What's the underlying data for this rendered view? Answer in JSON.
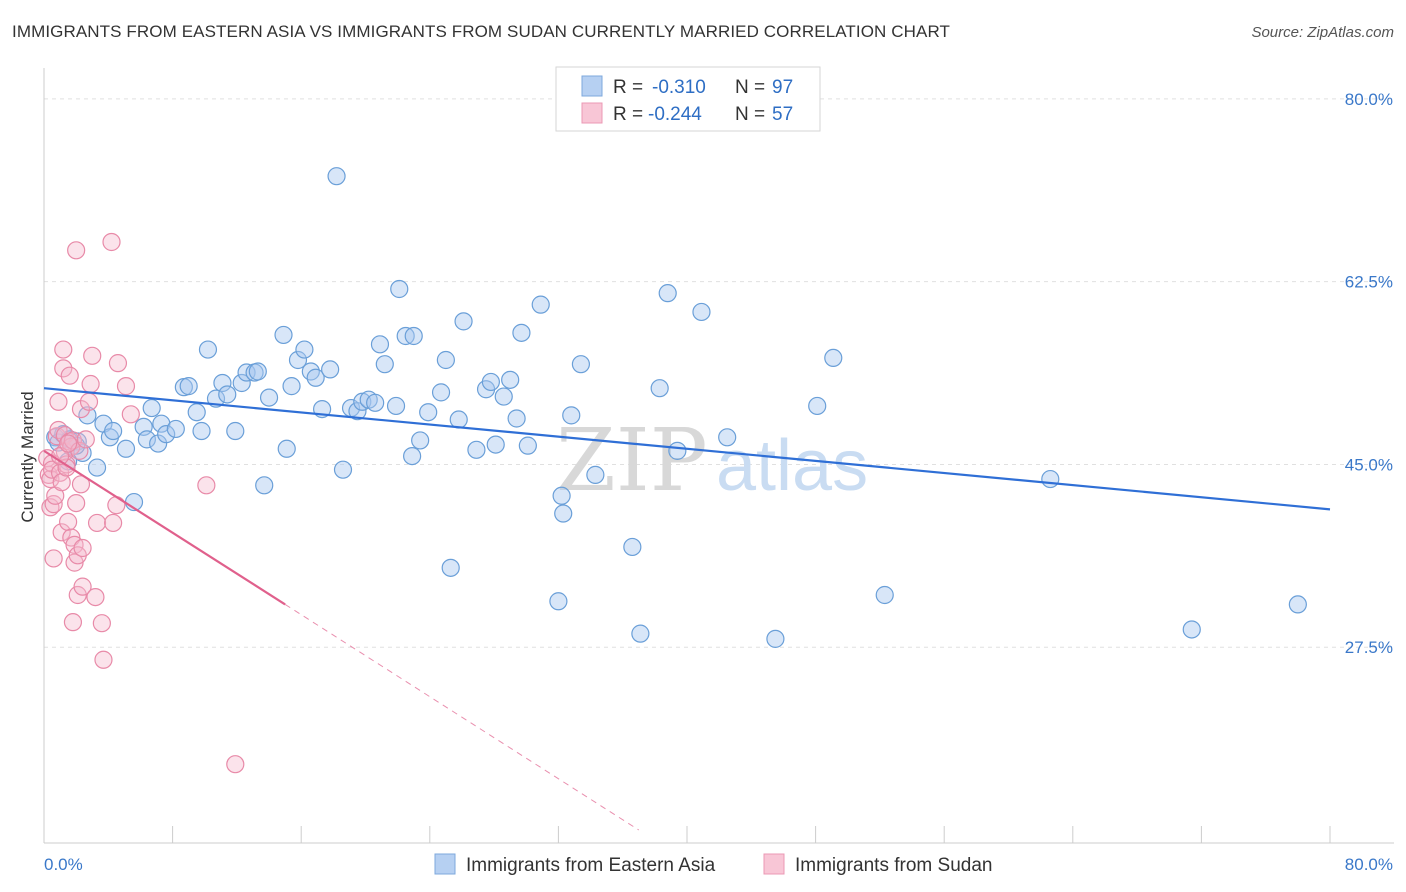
{
  "title": "IMMIGRANTS FROM EASTERN ASIA VS IMMIGRANTS FROM SUDAN CURRENTLY MARRIED CORRELATION CHART",
  "source": "Source: ZipAtlas.com",
  "watermark": {
    "zip": "ZIP",
    "atlas": "atlas"
  },
  "colors": {
    "blue_fill": "#a8c8f0",
    "blue_stroke": "#6a9fd8",
    "blue_line": "#2f6fd6",
    "pink_fill": "#f5b8cc",
    "pink_stroke": "#e88aa8",
    "pink_line": "#e0608c",
    "tick_label": "#3a78c9",
    "grid": "#e0e0e0"
  },
  "legend": {
    "rows": [
      {
        "r_label": "R = ",
        "r_value": "-0.310",
        "n_label": "N = ",
        "n_value": "97"
      },
      {
        "r_label": "R = ",
        "r_value": "-0.244",
        "n_label": "N = ",
        "n_value": "57"
      }
    ]
  },
  "chart_data": {
    "type": "scatter",
    "title": "IMMIGRANTS FROM EASTERN ASIA VS IMMIGRANTS FROM SUDAN CURRENTLY MARRIED CORRELATION CHART",
    "xlabel": "",
    "ylabel": "Currently Married",
    "xlim": [
      0,
      80
    ],
    "ylim": [
      10,
      82
    ],
    "x_tick_labels": [
      "0.0%",
      "80.0%"
    ],
    "y_ticks": [
      27.5,
      45.0,
      62.5,
      80.0
    ],
    "y_tick_labels": [
      "27.5%",
      "45.0%",
      "62.5%",
      "80.0%"
    ],
    "grid": true,
    "legend_position": "top-center",
    "series": [
      {
        "name": "Immigrants from Eastern Asia",
        "color": "#6a9fd8",
        "r": -0.31,
        "n": 97,
        "trend": {
          "x": [
            0,
            80
          ],
          "y": [
            52.3,
            40.7
          ]
        },
        "points": [
          [
            0.7,
            47.6
          ],
          [
            0.9,
            47.1
          ],
          [
            1.2,
            47.9
          ],
          [
            1.6,
            47.4
          ],
          [
            2.1,
            47.2
          ],
          [
            2.4,
            46.1
          ],
          [
            2.7,
            49.7
          ],
          [
            3.3,
            44.7
          ],
          [
            3.7,
            48.9
          ],
          [
            4.1,
            47.6
          ],
          [
            4.3,
            48.2
          ],
          [
            5.1,
            46.5
          ],
          [
            5.6,
            41.4
          ],
          [
            6.2,
            48.6
          ],
          [
            6.4,
            47.4
          ],
          [
            6.7,
            50.4
          ],
          [
            7.1,
            47.0
          ],
          [
            7.3,
            48.9
          ],
          [
            7.6,
            47.9
          ],
          [
            8.2,
            48.4
          ],
          [
            8.7,
            52.4
          ],
          [
            9.0,
            52.5
          ],
          [
            9.5,
            50.0
          ],
          [
            9.8,
            48.2
          ],
          [
            10.2,
            56.0
          ],
          [
            10.7,
            51.3
          ],
          [
            11.1,
            52.8
          ],
          [
            11.4,
            51.7
          ],
          [
            11.9,
            48.2
          ],
          [
            12.3,
            52.8
          ],
          [
            12.6,
            53.8
          ],
          [
            13.1,
            53.8
          ],
          [
            13.3,
            53.9
          ],
          [
            13.7,
            43.0
          ],
          [
            14.0,
            51.4
          ],
          [
            14.9,
            57.4
          ],
          [
            15.1,
            46.5
          ],
          [
            15.4,
            52.5
          ],
          [
            15.8,
            55.0
          ],
          [
            16.2,
            56.0
          ],
          [
            16.6,
            53.9
          ],
          [
            16.9,
            53.3
          ],
          [
            17.3,
            50.3
          ],
          [
            17.8,
            54.1
          ],
          [
            18.2,
            72.6
          ],
          [
            18.6,
            44.5
          ],
          [
            19.1,
            50.4
          ],
          [
            19.5,
            50.1
          ],
          [
            19.8,
            51.0
          ],
          [
            20.2,
            51.2
          ],
          [
            20.6,
            50.9
          ],
          [
            20.9,
            56.5
          ],
          [
            21.2,
            54.6
          ],
          [
            21.9,
            50.6
          ],
          [
            22.1,
            61.8
          ],
          [
            22.5,
            57.3
          ],
          [
            22.9,
            45.8
          ],
          [
            23.0,
            57.3
          ],
          [
            23.4,
            47.3
          ],
          [
            23.9,
            50.0
          ],
          [
            24.7,
            51.9
          ],
          [
            25.0,
            55.0
          ],
          [
            25.3,
            35.1
          ],
          [
            25.8,
            49.3
          ],
          [
            26.1,
            58.7
          ],
          [
            26.9,
            46.4
          ],
          [
            27.5,
            52.2
          ],
          [
            27.8,
            52.9
          ],
          [
            28.1,
            46.9
          ],
          [
            28.6,
            51.5
          ],
          [
            29.0,
            53.1
          ],
          [
            29.4,
            49.4
          ],
          [
            29.7,
            57.6
          ],
          [
            30.1,
            46.8
          ],
          [
            30.9,
            60.3
          ],
          [
            32.0,
            31.9
          ],
          [
            32.2,
            42.0
          ],
          [
            32.3,
            40.3
          ],
          [
            32.8,
            49.7
          ],
          [
            33.4,
            54.6
          ],
          [
            34.3,
            44.0
          ],
          [
            36.6,
            37.1
          ],
          [
            37.1,
            28.8
          ],
          [
            38.3,
            52.3
          ],
          [
            38.8,
            61.4
          ],
          [
            39.4,
            46.3
          ],
          [
            40.9,
            59.6
          ],
          [
            42.5,
            47.6
          ],
          [
            45.5,
            28.3
          ],
          [
            48.1,
            50.6
          ],
          [
            49.1,
            55.2
          ],
          [
            52.3,
            32.5
          ],
          [
            62.6,
            43.6
          ],
          [
            71.4,
            29.2
          ],
          [
            78.0,
            31.6
          ],
          [
            1.5,
            45.3
          ],
          [
            2.0,
            46.8
          ]
        ]
      },
      {
        "name": "Immigrants from Sudan",
        "color": "#e88aa8",
        "r": -0.244,
        "n": 57,
        "trend": {
          "x": [
            0,
            15
          ],
          "y": [
            46.3,
            31.6
          ]
        },
        "trend_dashed": {
          "x": [
            15,
            37
          ],
          "y": [
            31.6,
            10.0
          ]
        },
        "points": [
          [
            0.2,
            45.6
          ],
          [
            0.3,
            44.0
          ],
          [
            0.4,
            43.6
          ],
          [
            0.4,
            40.9
          ],
          [
            0.5,
            45.1
          ],
          [
            0.5,
            44.5
          ],
          [
            0.6,
            36.0
          ],
          [
            0.6,
            41.2
          ],
          [
            0.7,
            42.0
          ],
          [
            0.8,
            47.7
          ],
          [
            0.9,
            51.0
          ],
          [
            0.9,
            48.3
          ],
          [
            1.0,
            44.2
          ],
          [
            1.1,
            43.3
          ],
          [
            1.1,
            38.5
          ],
          [
            1.2,
            56.0
          ],
          [
            1.2,
            54.2
          ],
          [
            1.3,
            46.2
          ],
          [
            1.3,
            47.8
          ],
          [
            1.4,
            45.0
          ],
          [
            1.4,
            44.7
          ],
          [
            1.5,
            39.5
          ],
          [
            1.6,
            47.2
          ],
          [
            1.6,
            53.5
          ],
          [
            1.7,
            46.7
          ],
          [
            1.7,
            38.0
          ],
          [
            1.8,
            47.3
          ],
          [
            1.8,
            29.9
          ],
          [
            1.9,
            35.6
          ],
          [
            1.9,
            37.3
          ],
          [
            2.0,
            41.3
          ],
          [
            2.0,
            65.5
          ],
          [
            2.1,
            32.5
          ],
          [
            2.1,
            36.3
          ],
          [
            2.2,
            46.3
          ],
          [
            2.3,
            50.3
          ],
          [
            2.3,
            43.1
          ],
          [
            2.4,
            33.3
          ],
          [
            2.4,
            37.0
          ],
          [
            2.6,
            47.4
          ],
          [
            2.8,
            51.0
          ],
          [
            2.9,
            52.7
          ],
          [
            3.0,
            55.4
          ],
          [
            3.2,
            32.3
          ],
          [
            3.3,
            39.4
          ],
          [
            3.6,
            29.8
          ],
          [
            3.7,
            26.3
          ],
          [
            4.2,
            66.3
          ],
          [
            4.3,
            39.4
          ],
          [
            4.5,
            41.1
          ],
          [
            4.6,
            54.7
          ],
          [
            5.1,
            52.5
          ],
          [
            5.4,
            49.8
          ],
          [
            10.1,
            43.0
          ],
          [
            11.9,
            16.3
          ],
          [
            1.0,
            45.8
          ],
          [
            1.5,
            47.0
          ]
        ]
      }
    ]
  }
}
